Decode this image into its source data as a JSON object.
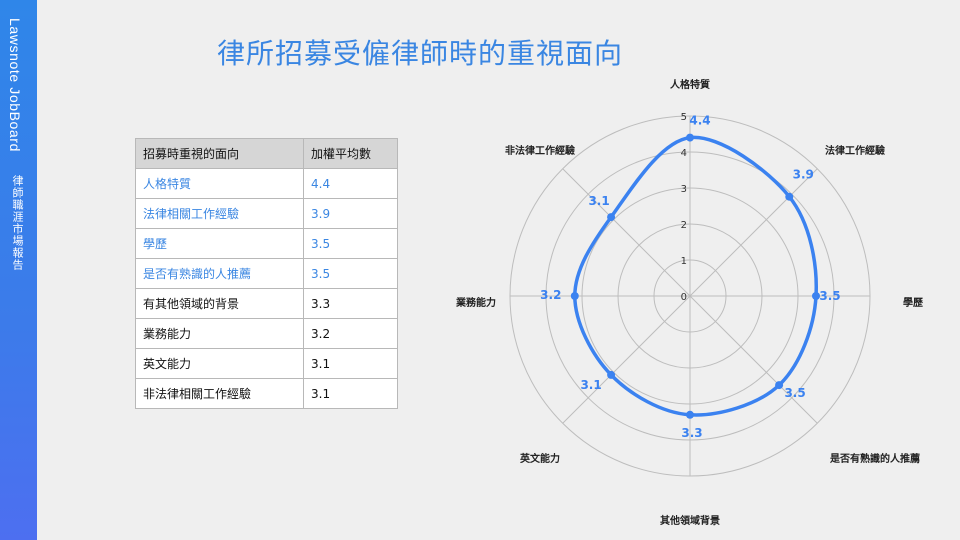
{
  "sidebar": {
    "brand": "Lawsnote JobBoard",
    "subtitle": "律師職涯市場報告"
  },
  "title": "律所招募受僱律師時的重視面向",
  "table": {
    "headers": [
      "招募時重視的面向",
      "加權平均數"
    ],
    "rows": [
      {
        "label": "人格特質",
        "value": "4.4",
        "highlight": true
      },
      {
        "label": "法律相關工作經驗",
        "value": "3.9",
        "highlight": true
      },
      {
        "label": "學歷",
        "value": "3.5",
        "highlight": true
      },
      {
        "label": "是否有熟識的人推薦",
        "value": "3.5",
        "highlight": true
      },
      {
        "label": "有其他領域的背景",
        "value": "3.3",
        "highlight": false
      },
      {
        "label": "業務能力",
        "value": "3.2",
        "highlight": false
      },
      {
        "label": "英文能力",
        "value": "3.1",
        "highlight": false
      },
      {
        "label": "非法律相關工作經驗",
        "value": "3.1",
        "highlight": false
      }
    ]
  },
  "colors": {
    "accent": "#3a86e2",
    "series": "#3b82f0",
    "grid": "#bdbdbd",
    "sidebar": "#3c7bea"
  },
  "chart_data": {
    "type": "radar",
    "categories": [
      "人格特質",
      "法律工作經驗",
      "學歷",
      "是否有熟識的人推薦",
      "其他領域背景",
      "英文能力",
      "業務能力",
      "非法律工作經驗"
    ],
    "values": [
      4.4,
      3.9,
      3.5,
      3.5,
      3.3,
      3.1,
      3.2,
      3.1
    ],
    "value_labels": [
      "4.4",
      "3.9",
      "3.5",
      "3.5",
      "3.3",
      "3.1",
      "3.2",
      "3.1"
    ],
    "rlim": [
      0,
      5
    ],
    "ticks": [
      0,
      1,
      2,
      3,
      4,
      5
    ],
    "grid": true,
    "legend": "none"
  }
}
